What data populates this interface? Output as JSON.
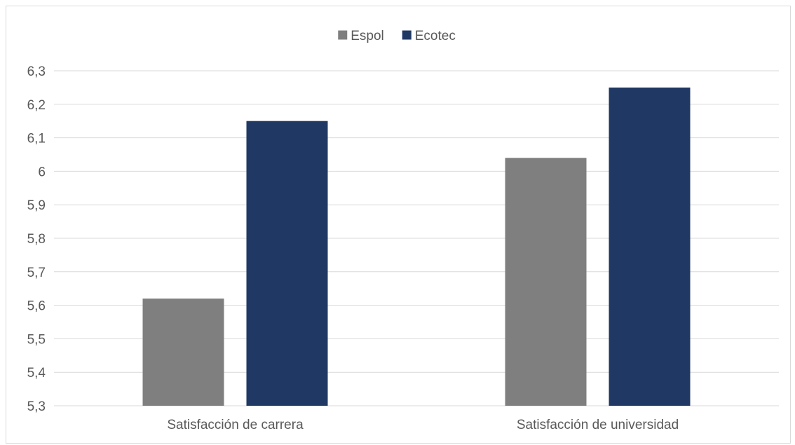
{
  "chart_data": {
    "type": "bar",
    "title": "",
    "xlabel": "",
    "ylabel": "",
    "categories": [
      "Satisfacción de carrera",
      "Satisfacción de universidad"
    ],
    "series": [
      {
        "name": "Espol",
        "values": [
          5.62,
          6.04
        ],
        "color": "#7f7f7f"
      },
      {
        "name": "Ecotec",
        "values": [
          6.15,
          6.25
        ],
        "color": "#203864"
      }
    ],
    "ylim": [
      5.3,
      6.3
    ],
    "yticks": [
      "5,3",
      "5,4",
      "5,5",
      "5,6",
      "5,7",
      "5,8",
      "5,9",
      "6",
      "6,1",
      "6,2",
      "6,3"
    ],
    "grid": "horizontal",
    "legend_position": "top-center"
  }
}
